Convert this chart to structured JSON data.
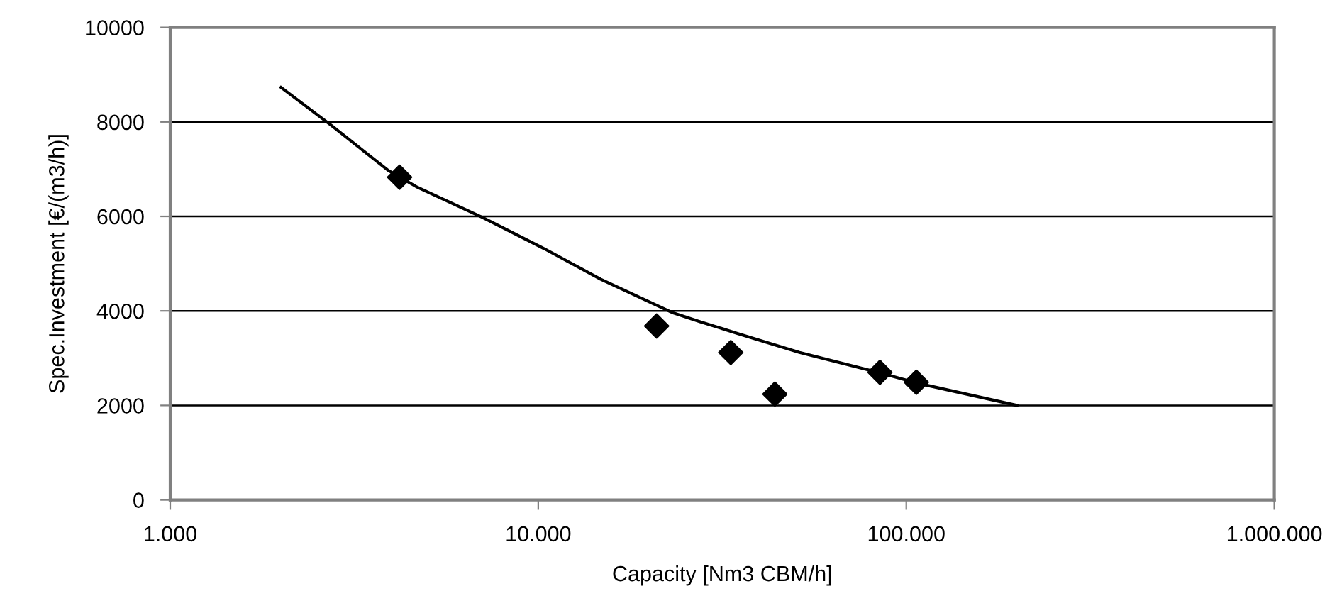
{
  "chart_data": {
    "type": "scatter",
    "xlabel": "Capacity [Nm3 CBM/h]",
    "ylabel": "Spec.Investment [€/(m3/h)]",
    "log": "x",
    "xlim": [
      1000,
      1000000
    ],
    "xticks": [
      {
        "value": 1000,
        "label": "1.000"
      },
      {
        "value": 10000,
        "label": "10.000"
      },
      {
        "value": 100000,
        "label": "100.000"
      },
      {
        "value": 1000000,
        "label": "1.000.000"
      }
    ],
    "ylim": [
      0,
      10000
    ],
    "yticks": [
      0,
      2000,
      4000,
      6000,
      8000,
      10000
    ],
    "grid": "y",
    "legend": false,
    "series": [
      {
        "color": "#000000",
        "marker": "diamond",
        "x": [
          4200,
          20970,
          33350,
          43950,
          84800,
          106500
        ],
        "values": [
          6830,
          3680,
          3120,
          2240,
          2700,
          2490
        ]
      },
      {
        "type": "line",
        "color": "#000000",
        "marker": "none",
        "line_style": "solid",
        "x": [
          2000,
          2735,
          3900,
          4660,
          7050,
          10360,
          14790,
          23040,
          27530,
          34880,
          51250,
          84800,
          107400,
          200000
        ],
        "values": [
          8730,
          7930,
          6980,
          6630,
          5980,
          5320,
          4670,
          3970,
          3770,
          3520,
          3120,
          2690,
          2470,
          2000
        ]
      }
    ]
  }
}
